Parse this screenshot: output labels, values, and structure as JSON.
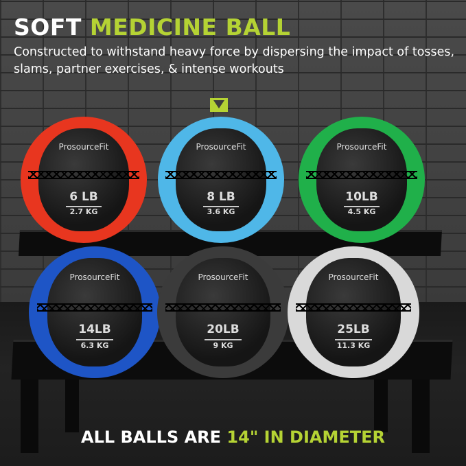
{
  "header": {
    "title_plain": "SOFT",
    "title_accent": "MEDICINE BALL",
    "subtitle": "Constructed to withstand heavy force by dispersing the impact of tosses, slams, partner exercises, & intense workouts"
  },
  "colors": {
    "accent": "#b5d334"
  },
  "balls": [
    {
      "brand": "ProsourceFit",
      "lb": "6 LB",
      "kg": "2.7 KG",
      "color": "#e8361f"
    },
    {
      "brand": "ProsourceFit",
      "lb": "8 LB",
      "kg": "3.6 KG",
      "color": "#4fb7e8"
    },
    {
      "brand": "ProsourceFit",
      "lb": "10LB",
      "kg": "4.5 KG",
      "color": "#20b04a"
    },
    {
      "brand": "ProsourceFit",
      "lb": "14LB",
      "kg": "6.3 KG",
      "color": "#1e55c6"
    },
    {
      "brand": "ProsourceFit",
      "lb": "20LB",
      "kg": "9 KG",
      "color": "#3b3b3b"
    },
    {
      "brand": "ProsourceFit",
      "lb": "25LB",
      "kg": "11.3 KG",
      "color": "#d9d9d9"
    }
  ],
  "footer": {
    "text_plain": "ALL BALLS ARE",
    "text_accent": "14\" IN DIAMETER"
  }
}
